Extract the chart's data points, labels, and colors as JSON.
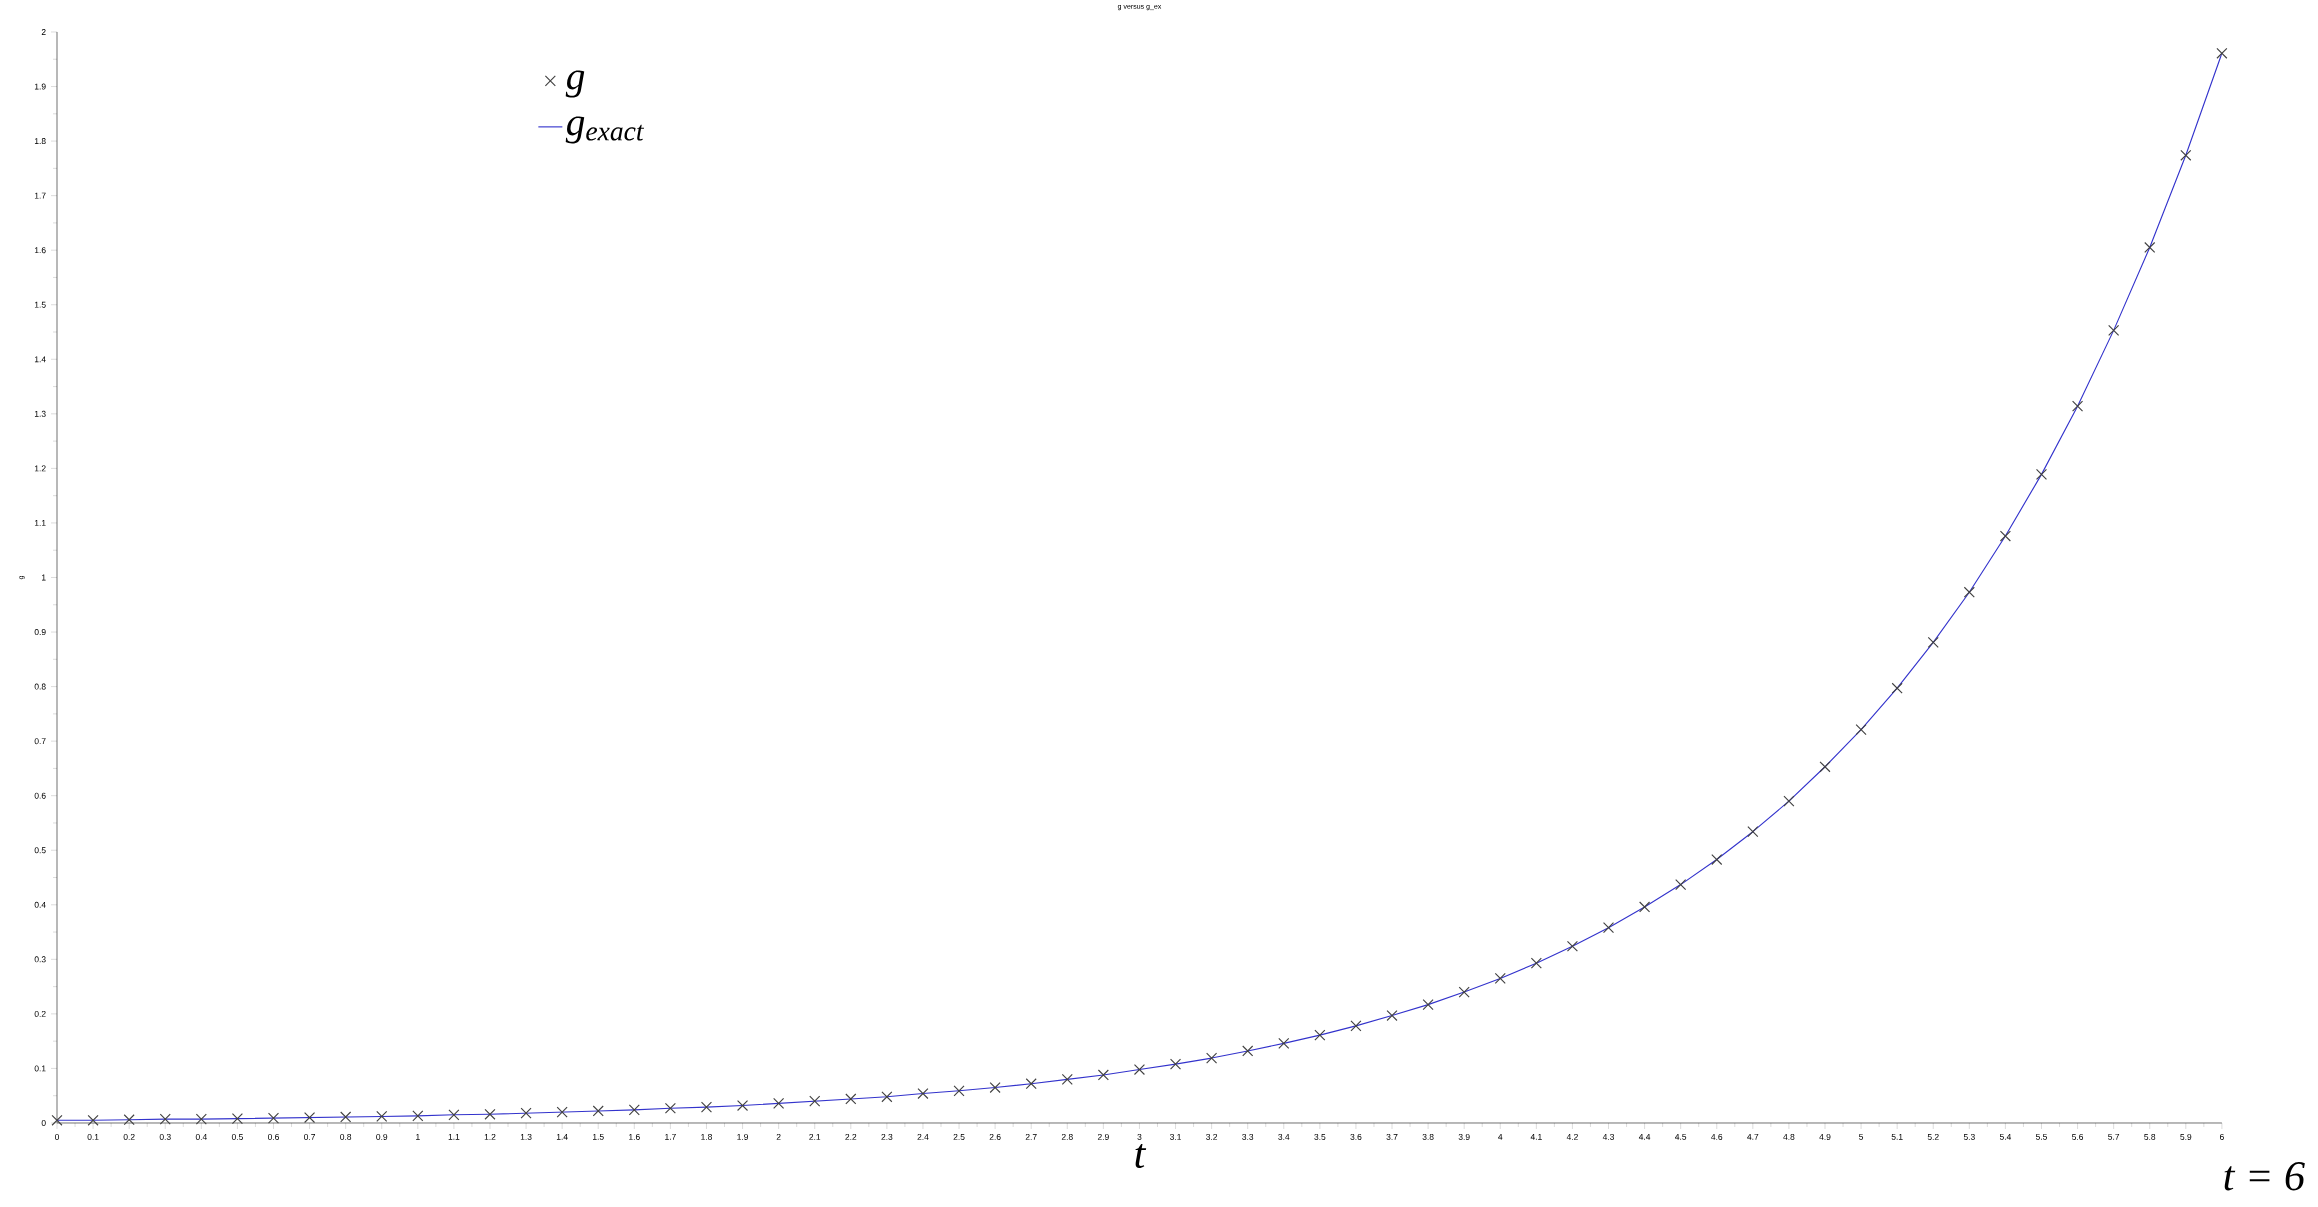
{
  "chart_data": {
    "type": "line",
    "title": "g versus g_ex",
    "xlabel": "t",
    "ylabel": "g",
    "annotations": [
      "t = 6"
    ],
    "x": [
      0,
      0.1,
      0.2,
      0.3,
      0.4,
      0.5,
      0.6,
      0.7,
      0.8,
      0.9,
      1,
      1.1,
      1.2,
      1.3,
      1.4,
      1.5,
      1.6,
      1.7,
      1.8,
      1.9,
      2,
      2.1,
      2.2,
      2.3,
      2.4,
      2.5,
      2.6,
      2.7,
      2.8,
      2.9,
      3,
      3.1,
      3.2,
      3.3,
      3.4,
      3.5,
      3.6,
      3.7,
      3.8,
      3.9,
      4,
      4.1,
      4.2,
      4.3,
      4.4,
      4.5,
      4.6,
      4.7,
      4.8,
      4.9,
      5,
      5.1,
      5.2,
      5.3,
      5.4,
      5.5,
      5.6,
      5.7,
      5.8,
      5.9,
      6
    ],
    "series": [
      {
        "name": "g",
        "type": "scatter",
        "marker": "cross",
        "color": "#404040",
        "values": [
          0.005,
          0.005,
          0.006,
          0.007,
          0.007,
          0.008,
          0.009,
          0.01,
          0.011,
          0.012,
          0.013,
          0.015,
          0.016,
          0.018,
          0.02,
          0.022,
          0.024,
          0.027,
          0.029,
          0.032,
          0.036,
          0.04,
          0.044,
          0.048,
          0.054,
          0.059,
          0.065,
          0.072,
          0.08,
          0.088,
          0.098,
          0.108,
          0.119,
          0.132,
          0.146,
          0.161,
          0.178,
          0.197,
          0.217,
          0.24,
          0.265,
          0.293,
          0.324,
          0.358,
          0.396,
          0.437,
          0.483,
          0.534,
          0.59,
          0.653,
          0.721,
          0.797,
          0.881,
          0.973,
          1.076,
          1.189,
          1.314,
          1.453,
          1.605,
          1.774,
          1.961
        ]
      },
      {
        "name": "g$_{exact}$",
        "marker": "none",
        "line_style": "solid",
        "color": "#3333cc",
        "values": [
          0.005,
          0.005,
          0.006,
          0.007,
          0.007,
          0.008,
          0.009,
          0.01,
          0.011,
          0.012,
          0.013,
          0.015,
          0.016,
          0.018,
          0.02,
          0.022,
          0.024,
          0.027,
          0.029,
          0.032,
          0.036,
          0.04,
          0.044,
          0.048,
          0.054,
          0.059,
          0.065,
          0.072,
          0.08,
          0.088,
          0.098,
          0.108,
          0.119,
          0.132,
          0.146,
          0.161,
          0.178,
          0.197,
          0.217,
          0.24,
          0.265,
          0.293,
          0.324,
          0.358,
          0.396,
          0.437,
          0.483,
          0.534,
          0.59,
          0.653,
          0.721,
          0.797,
          0.881,
          0.973,
          1.076,
          1.189,
          1.314,
          1.453,
          1.605,
          1.774,
          1.961
        ]
      }
    ],
    "xlim": [
      0,
      6
    ],
    "ylim": [
      0,
      2
    ],
    "xticks": [
      0,
      0.1,
      0.2,
      0.3,
      0.4,
      0.5,
      0.6,
      0.7,
      0.8,
      0.9,
      1,
      1.1,
      1.2,
      1.3,
      1.4,
      1.5,
      1.6,
      1.7,
      1.8,
      1.9,
      2,
      2.1,
      2.2,
      2.3,
      2.4,
      2.5,
      2.6,
      2.7,
      2.8,
      2.9,
      3,
      3.1,
      3.2,
      3.3,
      3.4,
      3.5,
      3.6,
      3.7,
      3.8,
      3.9,
      4,
      4.1,
      4.2,
      4.3,
      4.4,
      4.5,
      4.6,
      4.7,
      4.8,
      4.9,
      5,
      5.1,
      5.2,
      5.3,
      5.4,
      5.5,
      5.6,
      5.7,
      5.8,
      5.9,
      6
    ],
    "yticks": [
      0,
      0.1,
      0.2,
      0.3,
      0.4,
      0.5,
      0.6,
      0.7,
      0.8,
      0.9,
      1,
      1.1,
      1.2,
      1.3,
      1.4,
      1.5,
      1.6,
      1.7,
      1.8,
      1.9,
      2
    ],
    "legend": "top left"
  }
}
